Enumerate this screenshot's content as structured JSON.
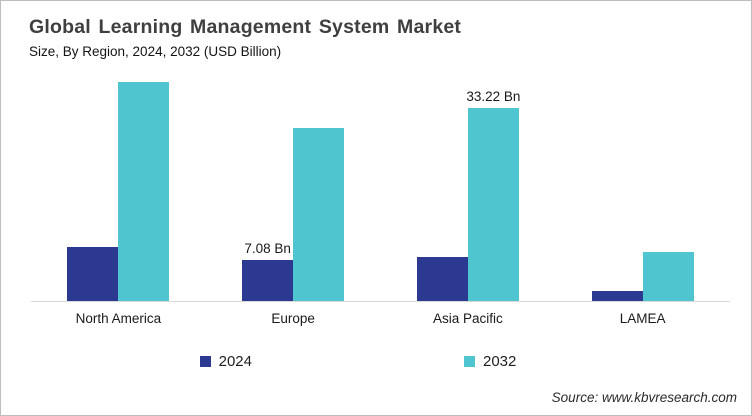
{
  "source_text": "Source: www.kbvresearch.com",
  "chart_data": {
    "type": "bar",
    "title": "Global Learning Management System Market",
    "subtitle": "Size, By Region, 2024, 2032 (USD Billion)",
    "unit": "USD Billion",
    "categories": [
      "North America",
      "Europe",
      "Asia Pacific",
      "LAMEA"
    ],
    "series": [
      {
        "name": "2024",
        "color": "#2B3990",
        "values": [
          9.3,
          7.08,
          7.6,
          1.7
        ],
        "point_labels": [
          "",
          "7.08 Bn",
          "",
          ""
        ]
      },
      {
        "name": "2032",
        "color": "#4FC5D0",
        "values": [
          37.7,
          29.9,
          33.22,
          8.5
        ],
        "point_labels": [
          "",
          "",
          "33.22 Bn",
          ""
        ]
      }
    ],
    "ylim": [
      0,
      40
    ],
    "grid": false,
    "y_axis_visible": false,
    "x_axis_line_color": "#d9d9d9",
    "legend_position": "bottom"
  }
}
